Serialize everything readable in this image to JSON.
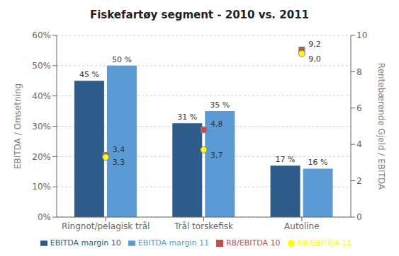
{
  "chart_data": {
    "type": "bar",
    "title": "Fiskefartøy segment - 2010 vs. 2011",
    "categories": [
      "Ringnot/pelagisk trål",
      "Trål torskefisk",
      "Autoline"
    ],
    "series": [
      {
        "name": "EBITDA margin 10",
        "color": "#2E5C8A",
        "values": [
          45,
          31,
          17
        ],
        "value_labels": [
          "45 %",
          "31 %",
          "17 %"
        ]
      },
      {
        "name": "EBITDA margin 11",
        "color": "#5B9BD5",
        "values": [
          50,
          35,
          16
        ],
        "value_labels": [
          "50 %",
          "35 %",
          "16 %"
        ]
      },
      {
        "name": "RB/EBITDA 10",
        "type": "scatter",
        "axis": "y2",
        "color": "#C0504D",
        "marker": "square",
        "values": [
          3.4,
          4.8,
          9.2
        ],
        "value_labels": [
          "3,4",
          "4,8",
          "9,2"
        ]
      },
      {
        "name": "RB/EBITDA 11",
        "type": "scatter",
        "axis": "y2",
        "color": "#FFFF00",
        "marker": "circle",
        "values": [
          3.3,
          3.7,
          9.0
        ],
        "value_labels": [
          "3,3",
          "3,7",
          "9,0"
        ]
      }
    ],
    "ylabel": "EBITDA / Omsetning",
    "y2label": "Rentebærende Gjeld / EBITDA",
    "ylim": [
      0,
      60
    ],
    "yticks": [
      {
        "value": 0,
        "label": "0%"
      },
      {
        "value": 10,
        "label": "10%"
      },
      {
        "value": 20,
        "label": "20%"
      },
      {
        "value": 30,
        "label": "30%"
      },
      {
        "value": 40,
        "label": "40%"
      },
      {
        "value": 50,
        "label": "50%"
      },
      {
        "value": 60,
        "label": "60%"
      }
    ],
    "y2lim": [
      0,
      10
    ],
    "y2ticks": [
      0,
      2,
      4,
      6,
      8,
      10
    ],
    "grid": true,
    "legend": "bottom",
    "data_labels": true
  }
}
